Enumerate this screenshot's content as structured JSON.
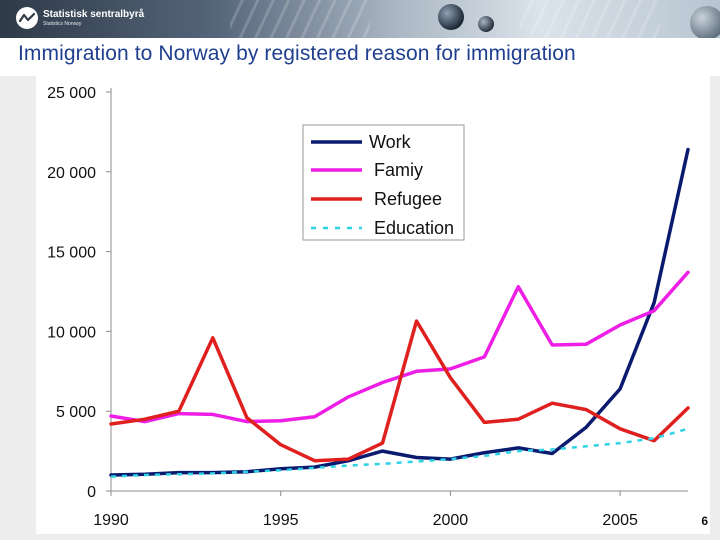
{
  "header": {
    "logo_name": "Statistisk sentralbyrå",
    "logo_sub": "Statistics Norway",
    "colors": {
      "banner_dark": "#2f3a48",
      "banner_light": "#dbe3ea"
    }
  },
  "page_title": "Immigration to Norway by registered reason for immigration",
  "page_number": "6",
  "chart_data": {
    "type": "line",
    "title": "",
    "xlabel": "",
    "ylabel": "",
    "xlim": [
      1990,
      2007
    ],
    "ylim": [
      0,
      25000
    ],
    "y_ticks": [
      0,
      5000,
      10000,
      15000,
      20000,
      25000
    ],
    "y_tick_labels": [
      "0",
      "5 000",
      "10 000",
      "15 000",
      "20 000",
      "25 000"
    ],
    "x_ticks": [
      1990,
      1995,
      2000,
      2005
    ],
    "x_tick_labels": [
      "1990",
      "1995",
      "2000",
      "2005"
    ],
    "grid": false,
    "legend_position": "top-center",
    "x": [
      1990,
      1991,
      1992,
      1993,
      1994,
      1995,
      1996,
      1997,
      1998,
      1999,
      2000,
      2001,
      2002,
      2003,
      2004,
      2005,
      2006,
      2007
    ],
    "series": [
      {
        "name": "Work",
        "color": "#0a1a6e",
        "dash": "solid",
        "values": [
          1000,
          1050,
          1150,
          1150,
          1200,
          1400,
          1500,
          1900,
          2500,
          2100,
          2000,
          2400,
          2700,
          2350,
          4000,
          6400,
          11800,
          21400
        ]
      },
      {
        "name": "Famiy",
        "color": "#ee1ee6",
        "dash": "solid",
        "values": [
          4700,
          4350,
          4850,
          4800,
          4350,
          4400,
          4650,
          5900,
          6800,
          7500,
          7650,
          8400,
          12800,
          9150,
          9200,
          10400,
          11300,
          13700
        ]
      },
      {
        "name": "Refugee",
        "color": "#e01f1f",
        "dash": "solid",
        "values": [
          4200,
          4500,
          5000,
          9600,
          4600,
          2900,
          1900,
          2000,
          3000,
          10650,
          7100,
          4300,
          4500,
          5500,
          5100,
          3900,
          3150,
          5200
        ]
      },
      {
        "name": "Education",
        "color": "#2ed3e6",
        "dash": "dashed",
        "values": [
          900,
          1000,
          1050,
          1100,
          1200,
          1300,
          1450,
          1600,
          1700,
          1850,
          2000,
          2200,
          2500,
          2600,
          2800,
          3000,
          3300,
          3900
        ]
      }
    ]
  }
}
